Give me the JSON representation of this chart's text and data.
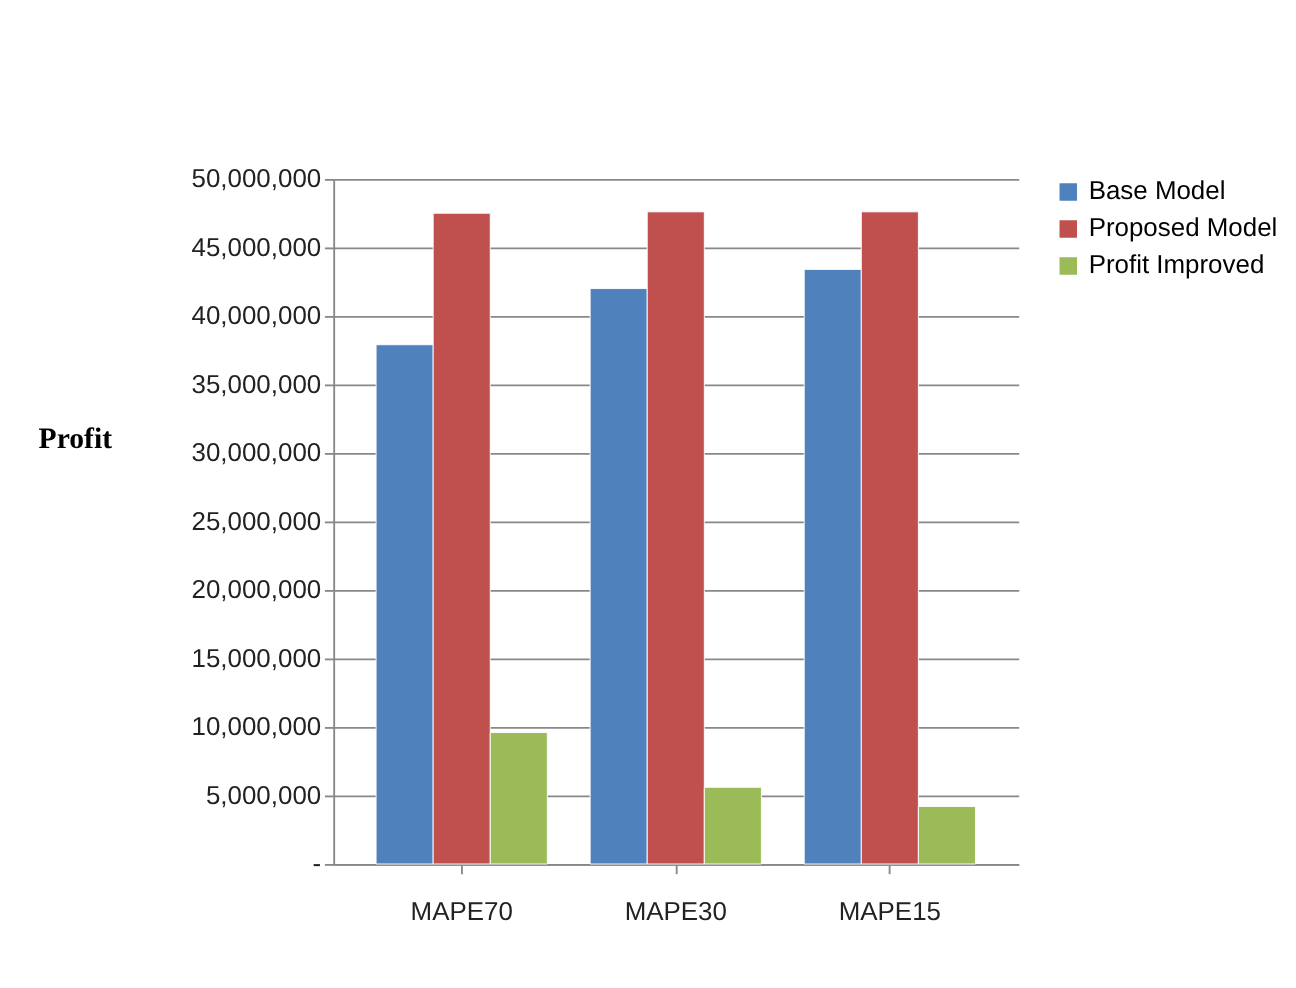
{
  "chart_data": {
    "type": "bar",
    "ylabel": "Profit",
    "categories": [
      "MAPE70",
      "MAPE30",
      "MAPE15"
    ],
    "series": [
      {
        "name": "Base Model",
        "color": "#4f81bd",
        "values": [
          37900000,
          42000000,
          43400000
        ]
      },
      {
        "name": "Proposed Model",
        "color": "#c0504d",
        "values": [
          47500000,
          47600000,
          47600000
        ]
      },
      {
        "name": "Profit Improved",
        "color": "#9bbb59",
        "values": [
          9600000,
          5600000,
          4200000
        ]
      }
    ],
    "ylim": [
      0,
      50000000
    ],
    "yticks": [
      {
        "value": 0,
        "label": "-"
      },
      {
        "value": 5000000,
        "label": "5,000,000"
      },
      {
        "value": 10000000,
        "label": "10,000,000"
      },
      {
        "value": 15000000,
        "label": "15,000,000"
      },
      {
        "value": 20000000,
        "label": "20,000,000"
      },
      {
        "value": 25000000,
        "label": "25,000,000"
      },
      {
        "value": 30000000,
        "label": "30,000,000"
      },
      {
        "value": 35000000,
        "label": "35,000,000"
      },
      {
        "value": 40000000,
        "label": "40,000,000"
      },
      {
        "value": 45000000,
        "label": "45,000,000"
      },
      {
        "value": 50000000,
        "label": "50,000,000"
      }
    ],
    "grid": "y",
    "legend": "right"
  }
}
